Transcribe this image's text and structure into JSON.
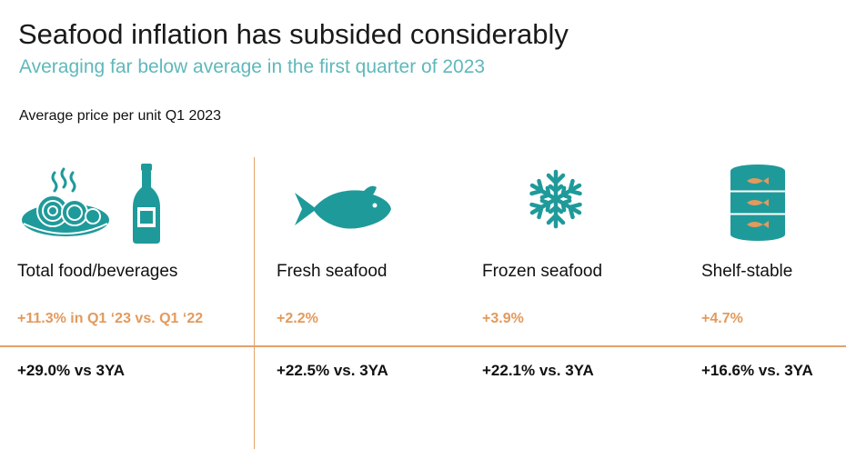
{
  "header": {
    "title": "Seafood inflation has subsided considerably",
    "subtitle": "Averaging far below average in the first quarter of 2023",
    "metric_label": "Average price per unit Q1 2023"
  },
  "colors": {
    "teal": "#1f9a9a",
    "orange": "#e39a5c",
    "divider": "#e0a36a",
    "subtitle": "#5fb8bb"
  },
  "categories": [
    {
      "name": "Total food/beverages",
      "yoy": "+11.3% in Q1 ‘23 vs. Q1 ‘22",
      "three_year": "+29.0% vs 3YA",
      "icons": [
        "food-plate-icon",
        "bottle-icon"
      ]
    },
    {
      "name": "Fresh seafood",
      "yoy": "+2.2%",
      "three_year": "+22.5% vs. 3YA",
      "icons": [
        "fish-icon"
      ]
    },
    {
      "name": "Frozen seafood",
      "yoy": "+3.9%",
      "three_year": "+22.1% vs. 3YA",
      "icons": [
        "snowflake-icon"
      ]
    },
    {
      "name": "Shelf-stable",
      "yoy": "+4.7%",
      "three_year": "+16.6% vs. 3YA",
      "icons": [
        "canned-fish-icon"
      ]
    }
  ]
}
